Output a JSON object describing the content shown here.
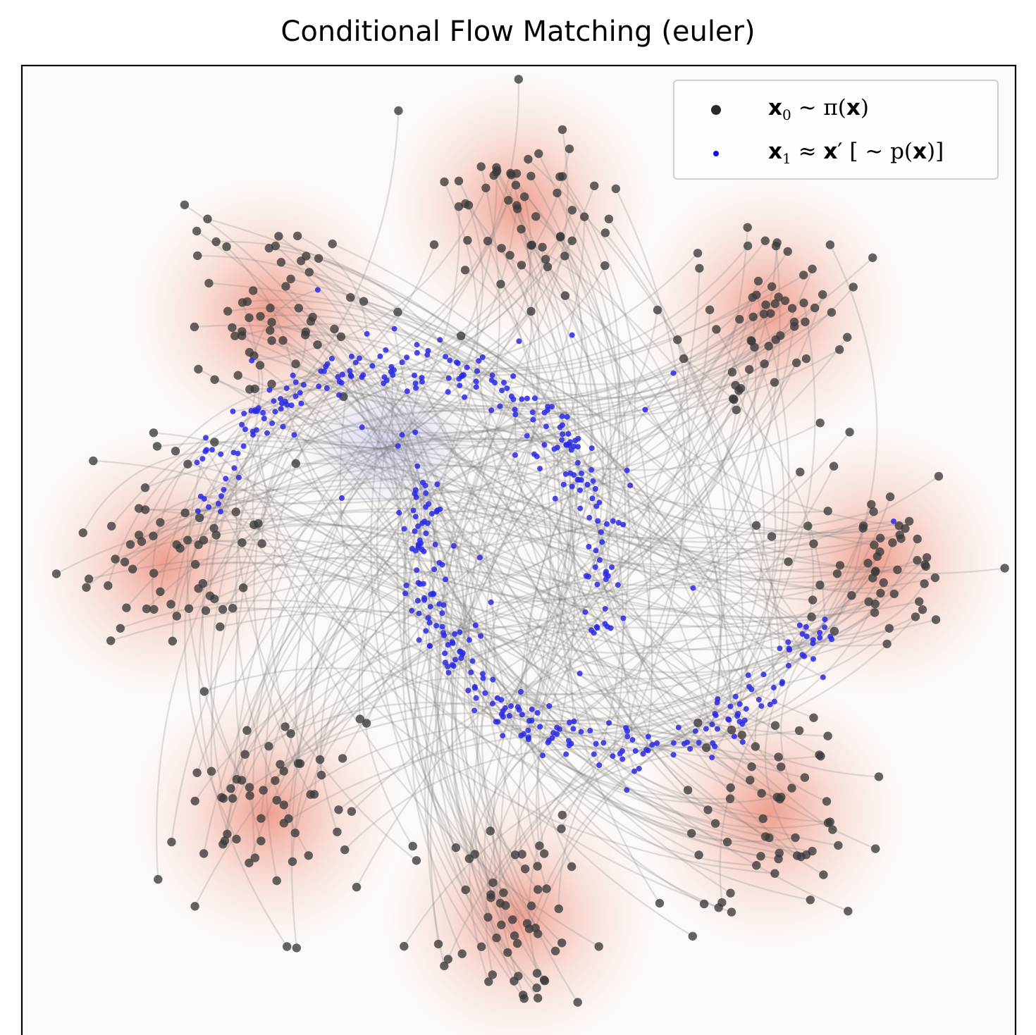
{
  "chart_data": {
    "type": "scatter",
    "title": "Conditional Flow Matching (euler)",
    "xlabel": "",
    "ylabel": "",
    "xlim": [
      -4.2,
      4.2
    ],
    "ylim": [
      -4.2,
      4.2
    ],
    "ticks_visible": false,
    "grid": false,
    "legend_position": "top-right",
    "background_color": "#fcf9f7",
    "source_density": "8-gaussians",
    "source_centers": [
      [
        0,
        3.0
      ],
      [
        2.12,
        2.12
      ],
      [
        3.0,
        0
      ],
      [
        2.12,
        -2.12
      ],
      [
        0,
        -3.0
      ],
      [
        -2.12,
        -2.12
      ],
      [
        -3.0,
        0
      ],
      [
        -2.12,
        2.12
      ]
    ],
    "target_density": "two-moons",
    "series": [
      {
        "name": "x0 ~ π(x)",
        "color": "#3a3a3a",
        "marker": "large-circle"
      },
      {
        "name": "x1 ≈ x′ [ ~ p(x)]",
        "color": "#2a2ae6",
        "marker": "small-circle"
      }
    ],
    "trajectory_color": "#7a7a7a"
  },
  "legend": {
    "x0": {
      "base": "x",
      "sub": "0",
      "rest": " ~ π(",
      "arg": "x",
      "close": ")"
    },
    "x1": {
      "base": "x",
      "sub": "1",
      "mid": " ≈ ",
      "prime": "x",
      "after": "′ [ ~ p(",
      "arg": "x",
      "close": ")]"
    }
  },
  "colors": {
    "source": "#3a3a3a",
    "target": "#2a2ae6",
    "density_glow": "#e4553a",
    "target_glow": "#5a5ae0"
  }
}
